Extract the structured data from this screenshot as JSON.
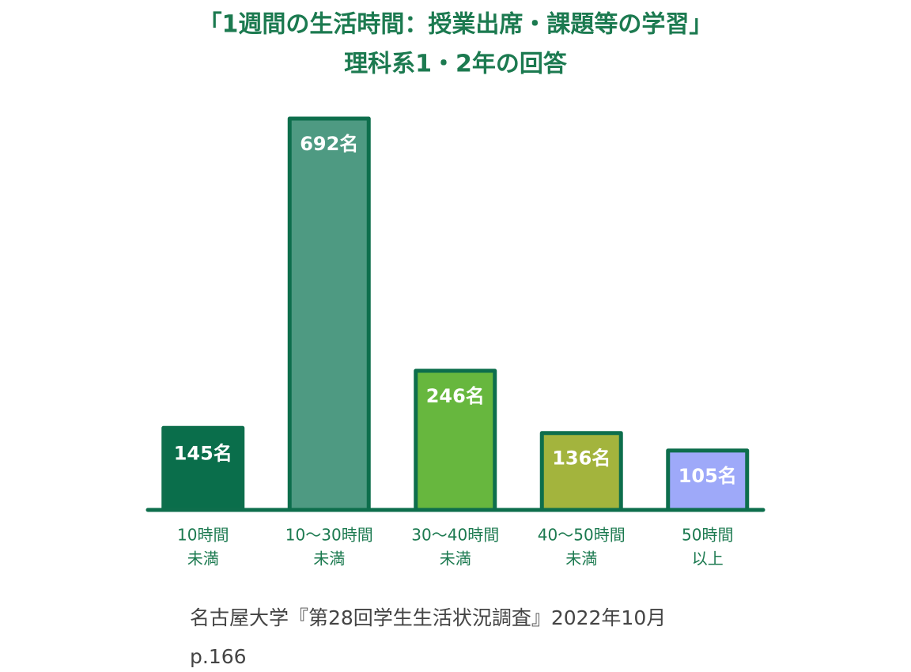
{
  "chart_data": {
    "type": "bar",
    "title": "「1週間の生活時間：授業出席・課題等の学習」",
    "subtitle": "理科系1・2年の回答",
    "categories": [
      [
        "10時間",
        "未満"
      ],
      [
        "10～30時間",
        "未満"
      ],
      [
        "30～40時間",
        "未満"
      ],
      [
        "40～50時間",
        "未満"
      ],
      [
        "50時間",
        "以上"
      ]
    ],
    "values": [
      145,
      692,
      246,
      136,
      105
    ],
    "value_labels": [
      "145名",
      "692名",
      "246名",
      "136名",
      "105名"
    ],
    "colors": [
      "#0a6e4b",
      "#4e9a82",
      "#67b73e",
      "#a3b43d",
      "#9ea9f9"
    ],
    "ylim": [
      0,
      692
    ],
    "source": [
      "名古屋大学『第28回学生生活状況調査』2022年10月",
      "p.166"
    ]
  }
}
